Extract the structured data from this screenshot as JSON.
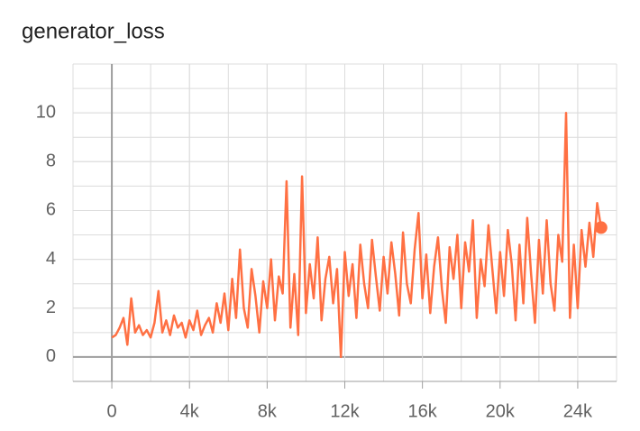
{
  "chart_data": {
    "type": "line",
    "title": "generator_loss",
    "x": [
      0,
      200,
      400,
      600,
      800,
      1000,
      1200,
      1400,
      1600,
      1800,
      2000,
      2200,
      2400,
      2600,
      2800,
      3000,
      3200,
      3400,
      3600,
      3800,
      4000,
      4200,
      4400,
      4600,
      4800,
      5000,
      5200,
      5400,
      5600,
      5800,
      6000,
      6200,
      6400,
      6600,
      6800,
      7000,
      7200,
      7400,
      7600,
      7800,
      8000,
      8200,
      8400,
      8600,
      8800,
      9000,
      9200,
      9400,
      9600,
      9800,
      10000,
      10200,
      10400,
      10600,
      10800,
      11000,
      11200,
      11400,
      11600,
      11800,
      12000,
      12200,
      12400,
      12600,
      12800,
      13000,
      13200,
      13400,
      13600,
      13800,
      14000,
      14200,
      14400,
      14600,
      14800,
      15000,
      15200,
      15400,
      15600,
      15800,
      16000,
      16200,
      16400,
      16600,
      16800,
      17000,
      17200,
      17400,
      17600,
      17800,
      18000,
      18200,
      18400,
      18600,
      18800,
      19000,
      19200,
      19400,
      19600,
      19800,
      20000,
      20200,
      20400,
      20600,
      20800,
      21000,
      21200,
      21400,
      21600,
      21800,
      22000,
      22200,
      22400,
      22600,
      22800,
      23000,
      23200,
      23400,
      23600,
      23800,
      24000,
      24200,
      24400,
      24600,
      24800,
      25000,
      25200
    ],
    "series": [
      {
        "name": "generator_loss",
        "color": "#ff7043",
        "values": [
          0.8,
          0.9,
          1.2,
          1.6,
          0.5,
          2.4,
          1.0,
          1.3,
          0.9,
          1.1,
          0.8,
          1.4,
          2.7,
          1.0,
          1.5,
          0.9,
          1.7,
          1.2,
          1.4,
          0.8,
          1.5,
          1.1,
          1.9,
          0.9,
          1.3,
          1.6,
          1.0,
          2.2,
          1.4,
          2.6,
          1.1,
          3.2,
          1.6,
          4.4,
          2.0,
          1.2,
          3.6,
          2.5,
          1.0,
          3.1,
          2.0,
          4.0,
          1.5,
          3.3,
          2.6,
          7.2,
          1.2,
          3.4,
          0.9,
          7.4,
          1.8,
          3.8,
          2.4,
          4.9,
          1.5,
          3.2,
          4.1,
          2.2,
          3.6,
          0.0,
          4.3,
          2.5,
          3.8,
          1.6,
          4.6,
          3.0,
          2.0,
          4.8,
          3.3,
          1.9,
          4.1,
          2.6,
          4.7,
          3.4,
          1.7,
          5.1,
          3.0,
          2.2,
          4.4,
          5.9,
          2.4,
          4.2,
          1.8,
          3.7,
          4.9,
          2.8,
          1.4,
          4.5,
          3.2,
          5.0,
          2.0,
          4.7,
          3.5,
          5.6,
          1.6,
          4.0,
          2.9,
          5.4,
          3.6,
          1.8,
          4.3,
          2.5,
          5.2,
          3.8,
          1.5,
          4.6,
          2.2,
          5.7,
          3.4,
          1.4,
          4.8,
          2.6,
          5.6,
          3.0,
          1.9,
          5.0,
          3.9,
          10.0,
          1.6,
          4.6,
          2.0,
          5.2,
          3.7,
          5.5,
          4.1,
          6.3,
          5.3
        ]
      }
    ],
    "xlim": [
      -2000,
      26000
    ],
    "xticks": [
      0,
      {
        "value": 4000,
        "label": "4k"
      },
      {
        "value": 8000,
        "label": "8k"
      },
      {
        "value": 12000,
        "label": "12k"
      },
      {
        "value": 16000,
        "label": "16k"
      },
      {
        "value": 20000,
        "label": "20k"
      },
      {
        "value": 24000,
        "label": "24k"
      }
    ],
    "ylim": [
      -1,
      12
    ],
    "yticks": [
      0,
      2,
      4,
      6,
      8,
      10
    ],
    "grid": true
  }
}
